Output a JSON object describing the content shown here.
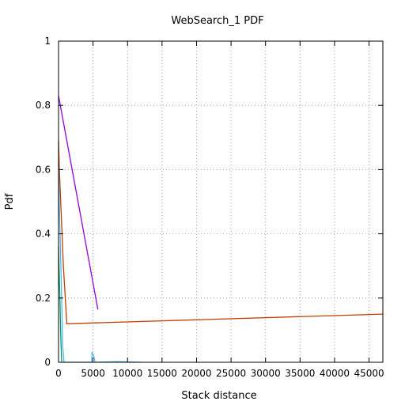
{
  "chart_data": {
    "type": "line",
    "title": "WebSearch_1 PDF",
    "xlabel": "Stack distance",
    "ylabel": "Pdf",
    "xlim": [
      0,
      47000
    ],
    "ylim": [
      0,
      1
    ],
    "x_ticks": [
      0,
      5000,
      10000,
      15000,
      20000,
      25000,
      30000,
      35000,
      40000,
      45000
    ],
    "x_tick_labels": [
      "0",
      "5000",
      "10000",
      "15000",
      "20000",
      "25000",
      "30000",
      "35000",
      "40000",
      "45000"
    ],
    "y_ticks": [
      0,
      0.2,
      0.4,
      0.6,
      0.8,
      1
    ],
    "y_tick_labels": [
      "0",
      "0.2",
      "0.4",
      "0.6",
      "0.8",
      "1"
    ],
    "grid": true,
    "legend": "none",
    "series": [
      {
        "color": "#9400d3",
        "points": [
          [
            0,
            0.83
          ],
          [
            5700,
            0.165
          ]
        ]
      },
      {
        "color": "#c04000",
        "points": [
          [
            0,
            0.69
          ],
          [
            120,
            0.6
          ],
          [
            700,
            0.3
          ],
          [
            1200,
            0.12
          ],
          [
            47000,
            0.15
          ]
        ]
      },
      {
        "color": "#009e73",
        "points": [
          [
            0,
            0.36
          ],
          [
            80,
            0.29
          ],
          [
            200,
            0.2
          ],
          [
            300,
            0.1
          ],
          [
            450,
            0
          ]
        ]
      },
      {
        "color": "#56b4e9",
        "points": [
          [
            0,
            0.62
          ],
          [
            100,
            0.5
          ],
          [
            400,
            0.25
          ],
          [
            600,
            0.05
          ],
          [
            800,
            0
          ],
          [
            4800,
            0
          ],
          [
            4850,
            0.032
          ],
          [
            5100,
            0.02
          ],
          [
            5300,
            0
          ],
          [
            8500,
            0.002
          ],
          [
            12000,
            0
          ]
        ]
      }
    ]
  }
}
